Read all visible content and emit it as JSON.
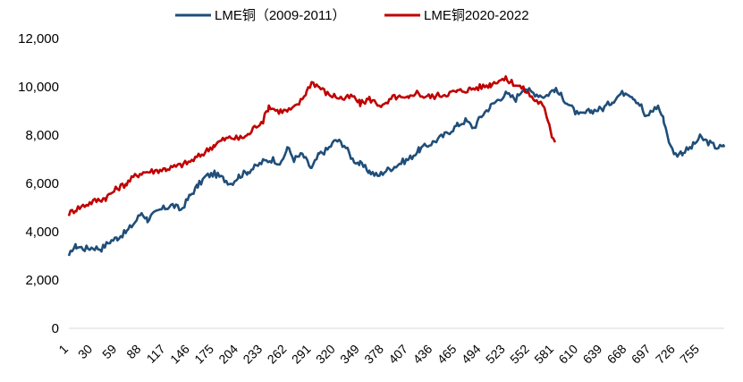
{
  "chart_data": {
    "type": "line",
    "title": "",
    "xlabel": "",
    "ylabel": "",
    "xlim": [
      1,
      784
    ],
    "ylim": [
      0,
      12000
    ],
    "y_ticks": [
      0,
      2000,
      4000,
      6000,
      8000,
      10000,
      12000
    ],
    "y_tick_labels": [
      "0",
      "2,000",
      "4,000",
      "6,000",
      "8,000",
      "10,000",
      "12,000"
    ],
    "x_ticks": [
      1,
      30,
      59,
      88,
      117,
      146,
      175,
      204,
      233,
      262,
      291,
      320,
      349,
      378,
      407,
      436,
      465,
      494,
      523,
      552,
      581,
      610,
      639,
      668,
      697,
      726,
      755
    ],
    "x_tick_labels": [
      "1",
      "30",
      "59",
      "88",
      "117",
      "146",
      "175",
      "204",
      "233",
      "262",
      "291",
      "320",
      "349",
      "378",
      "407",
      "436",
      "465",
      "494",
      "523",
      "552",
      "581",
      "610",
      "639",
      "668",
      "697",
      "726",
      "755"
    ],
    "grid": false,
    "legend_position": "top-center",
    "series": [
      {
        "name": "LME铜（2009-2011）",
        "color": "#1f4e79",
        "x": [
          1,
          5,
          10,
          20,
          30,
          40,
          50,
          59,
          70,
          80,
          88,
          95,
          100,
          110,
          117,
          125,
          135,
          146,
          155,
          165,
          175,
          185,
          195,
          204,
          215,
          225,
          233,
          245,
          255,
          262,
          270,
          280,
          291,
          300,
          310,
          320,
          330,
          340,
          349,
          360,
          370,
          378,
          390,
          400,
          407,
          420,
          436,
          450,
          465,
          475,
          485,
          494,
          505,
          515,
          523,
          535,
          545,
          552,
          560,
          570,
          581,
          590,
          600,
          610,
          625,
          639,
          650,
          660,
          668,
          675,
          685,
          690,
          697,
          705,
          712,
          720,
          726,
          735,
          745,
          755,
          765,
          775,
          784
        ],
        "values": [
          2900,
          3300,
          3400,
          3300,
          3350,
          3300,
          3600,
          3750,
          4000,
          4400,
          4800,
          4500,
          4650,
          4900,
          5000,
          5100,
          4900,
          5500,
          5900,
          6300,
          6400,
          6200,
          6000,
          6300,
          6500,
          6700,
          6900,
          7000,
          6800,
          7500,
          7000,
          7200,
          6600,
          7200,
          7400,
          7800,
          7600,
          7000,
          6800,
          6500,
          6300,
          6500,
          6700,
          6900,
          7000,
          7400,
          7700,
          8000,
          8400,
          8600,
          8300,
          8800,
          9200,
          9500,
          9700,
          9500,
          10000,
          9800,
          9700,
          9600,
          9900,
          9600,
          9200,
          8800,
          9000,
          9100,
          9400,
          9700,
          9800,
          9600,
          9200,
          8700,
          9000,
          9200,
          8600,
          7500,
          7200,
          7300,
          7500,
          7900,
          7700,
          7500,
          7500
        ]
      },
      {
        "name": "LME铜2020-2022",
        "color": "#c00000",
        "x": [
          1,
          10,
          20,
          30,
          45,
          59,
          70,
          80,
          88,
          100,
          117,
          130,
          146,
          160,
          175,
          185,
          195,
          204,
          215,
          225,
          233,
          240,
          250,
          262,
          270,
          278,
          285,
          291,
          300,
          310,
          320,
          330,
          340,
          349,
          360,
          370,
          378,
          390,
          400,
          407,
          415,
          425,
          436,
          450,
          465,
          480,
          494,
          505,
          515,
          523,
          530,
          540,
          548,
          556,
          565,
          570,
          575,
          578,
          582
        ],
        "values": [
          4750,
          4950,
          5100,
          5250,
          5400,
          5800,
          6000,
          6300,
          6450,
          6500,
          6600,
          6700,
          6900,
          7200,
          7600,
          7800,
          7900,
          7850,
          8000,
          8400,
          8600,
          9200,
          9000,
          9000,
          9100,
          9400,
          9800,
          10200,
          10000,
          9700,
          9600,
          9500,
          9600,
          9300,
          9500,
          9300,
          9200,
          9600,
          9500,
          9500,
          9800,
          9600,
          9600,
          9700,
          9800,
          9900,
          10000,
          10100,
          10300,
          10300,
          10200,
          10000,
          9800,
          9500,
          9300,
          9000,
          8500,
          8000,
          7700
        ]
      }
    ]
  }
}
